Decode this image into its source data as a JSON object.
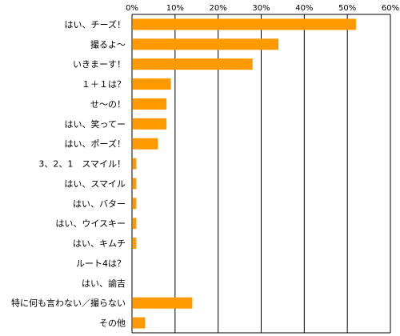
{
  "chart_data": {
    "type": "bar",
    "orientation": "horizontal",
    "categories": [
      "はい、チーズ！",
      "撮るよ～",
      "いきまーす！",
      "１＋１は？",
      "せ～の！",
      "はい、笑ってー",
      "はい、ポーズ！",
      "3、2、1　スマイル！",
      "はい、スマイル",
      "はい、バター",
      "はい、ウイスキー",
      "はい、キムチ",
      "ルート4は？",
      "はい、諭吉",
      "特に何も言わない／撮らない",
      "その他"
    ],
    "values": [
      52,
      34,
      28,
      9,
      8,
      8,
      6,
      1,
      1,
      1,
      1,
      1,
      0,
      0,
      14,
      3
    ],
    "xlim": [
      0,
      60
    ],
    "xticks": [
      0,
      10,
      20,
      30,
      40,
      50,
      60
    ],
    "tick_labels": [
      "0%",
      "10%",
      "20%",
      "30%",
      "40%",
      "50%",
      "60%"
    ],
    "axis_position": "top",
    "grid": true,
    "legend": false,
    "bar_color": "#FF9900",
    "grid_color": "#000000"
  }
}
